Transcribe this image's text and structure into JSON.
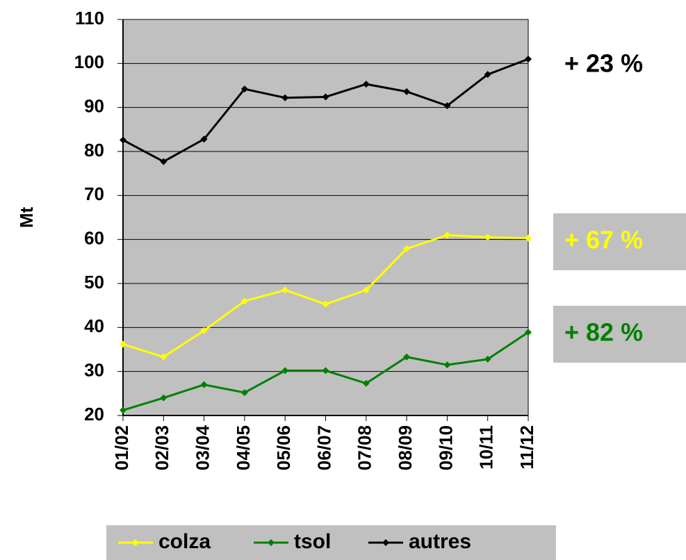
{
  "chart_data": {
    "type": "line",
    "y_label": "Mt",
    "categories": [
      "01/02",
      "02/03",
      "03/04",
      "04/05",
      "05/06",
      "06/07",
      "07/08",
      "08/09",
      "09/10",
      "10/11",
      "11/12"
    ],
    "series": [
      {
        "name": "colza",
        "color": "#ffff00",
        "values": [
          36.2,
          33.3,
          39.3,
          46.0,
          48.5,
          45.3,
          48.5,
          57.9,
          61.0,
          60.5,
          60.3
        ]
      },
      {
        "name": "tsol",
        "color": "#008000",
        "values": [
          21.2,
          24.0,
          27.0,
          25.2,
          30.2,
          30.2,
          27.3,
          33.3,
          31.5,
          32.8,
          38.9
        ]
      },
      {
        "name": "autres",
        "color": "#000000",
        "values": [
          82.6,
          77.7,
          82.8,
          94.2,
          92.2,
          92.4,
          95.3,
          93.6,
          90.4,
          97.5,
          101.0
        ]
      }
    ],
    "ylim": [
      20,
      110
    ],
    "yticks": [
      20,
      30,
      40,
      50,
      60,
      70,
      80,
      90,
      100,
      110
    ],
    "grid": true,
    "plot_background": "#c0c0c0",
    "legend": "bottom",
    "annotations": [
      {
        "text": "+ 23 %",
        "color": "#000000"
      },
      {
        "text": "+ 67 %",
        "color": "#ffff00",
        "background": "#c0c0c0"
      },
      {
        "text": "+ 82 %",
        "color": "#008000",
        "background": "#c0c0c0"
      }
    ]
  }
}
